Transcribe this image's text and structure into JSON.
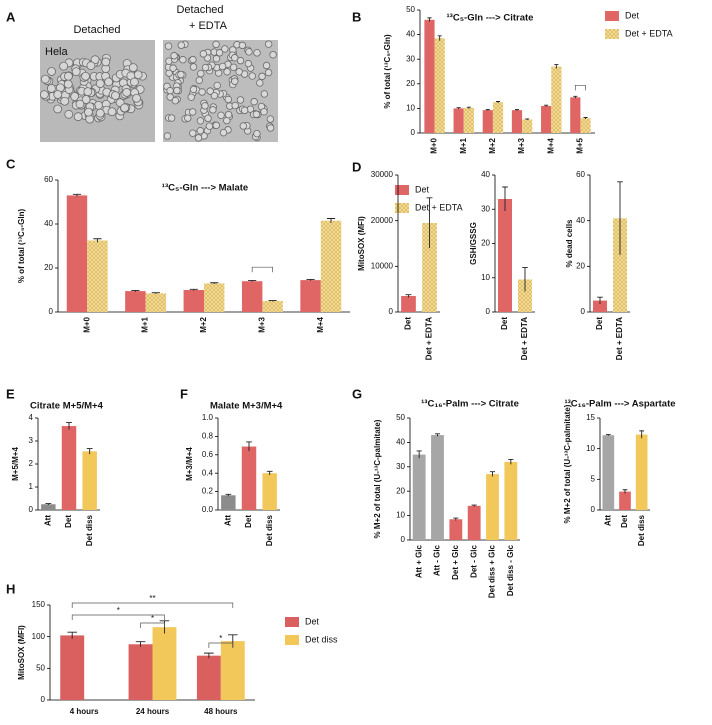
{
  "panel_a": {
    "label": "A",
    "cell_line": "Hela",
    "images": [
      {
        "title": [
          "Detached"
        ]
      },
      {
        "title": [
          "Detached",
          "+ EDTA"
        ]
      }
    ]
  },
  "chart_data": [
    {
      "type": "bar",
      "panel": "B",
      "title": "¹³C₅-Gln ---> Citrate",
      "ylabel": "% of total (¹³C₅-Gln)",
      "categories": [
        "M+0",
        "M+1",
        "M+2",
        "M+3",
        "M+4",
        "M+5"
      ],
      "series": [
        {
          "name": "Det",
          "color": "#e06666",
          "values": [
            46,
            10,
            9.3,
            9.3,
            11,
            14.5
          ],
          "errors": [
            0.8,
            0.3,
            0.2,
            0.2,
            0.3,
            0.4
          ]
        },
        {
          "name": "Det + EDTA",
          "color": "#e3bf5f",
          "hatch": true,
          "values": [
            38.5,
            10.2,
            12.5,
            5.5,
            27,
            6
          ],
          "errors": [
            1,
            0.3,
            0.3,
            0.2,
            0.8,
            0.3
          ]
        }
      ],
      "ylim": [
        0,
        50
      ],
      "yticks": [
        0,
        10,
        20,
        30,
        40,
        50
      ],
      "legend": "right"
    },
    {
      "type": "bar",
      "panel": "C",
      "title": "¹³C₅-Gln ---> Malate",
      "ylabel": "% of total (¹³C₅-Gln)",
      "categories": [
        "M+0",
        "M+1",
        "M+2",
        "M+3",
        "M+4"
      ],
      "series": [
        {
          "name": "Det",
          "color": "#e06666",
          "values": [
            53,
            9.5,
            10,
            14,
            14.5
          ],
          "errors": [
            0.5,
            0.3,
            0.3,
            0.3,
            0.3
          ]
        },
        {
          "name": "Det + EDTA",
          "color": "#e3bf5f",
          "hatch": true,
          "values": [
            32.5,
            8.5,
            13,
            5,
            41.5
          ],
          "errors": [
            0.8,
            0.3,
            0.3,
            0.2,
            1
          ]
        }
      ],
      "ylim": [
        0,
        60
      ],
      "yticks": [
        0,
        20,
        40,
        60
      ],
      "legend": "right"
    },
    {
      "type": "bar",
      "panel": "D",
      "ylabel": "MitoSOX (MFI)",
      "categories": [
        "Det",
        "Det + EDTA"
      ],
      "values": [
        3500,
        19500
      ],
      "errors": [
        300,
        5500
      ],
      "colors": [
        "#e06666",
        "#e3bf5f"
      ],
      "hatch": [
        false,
        true
      ],
      "ylim": [
        0,
        30000
      ],
      "yticks": [
        0,
        10000,
        20000,
        30000
      ]
    },
    {
      "type": "bar",
      "ylabel": "GSH/GSSG",
      "categories": [
        "Det",
        "Det + EDTA"
      ],
      "values": [
        33,
        9.5
      ],
      "errors": [
        3.5,
        3.5
      ],
      "colors": [
        "#e06666",
        "#e3bf5f"
      ],
      "hatch": [
        false,
        true
      ],
      "ylim": [
        0,
        40
      ],
      "yticks": [
        0,
        10,
        20,
        30,
        40
      ]
    },
    {
      "type": "bar",
      "ylabel": "% dead cells",
      "categories": [
        "Det",
        "Det + EDTA"
      ],
      "values": [
        5,
        41
      ],
      "errors": [
        1.5,
        16
      ],
      "colors": [
        "#e06666",
        "#e3bf5f"
      ],
      "hatch": [
        false,
        true
      ],
      "ylim": [
        0,
        60
      ],
      "yticks": [
        0,
        20,
        40,
        60
      ]
    },
    {
      "type": "bar",
      "panel": "E",
      "title": "Citrate M+5/M+4",
      "ylabel": "M+5/M+4",
      "categories": [
        "Att",
        "Det",
        "Det diss"
      ],
      "values": [
        0.25,
        3.65,
        2.55
      ],
      "errors": [
        0.03,
        0.15,
        0.12
      ],
      "colors": [
        "#8c8c8c",
        "#e06666",
        "#f2c85b"
      ],
      "ylim": [
        0,
        4
      ],
      "yticks": [
        0,
        1,
        2,
        3,
        4
      ]
    },
    {
      "type": "bar",
      "panel": "F",
      "title": "Malate M+3/M+4",
      "ylabel": "M+3/M+4",
      "categories": [
        "Att",
        "Det",
        "Det diss"
      ],
      "values": [
        0.16,
        0.69,
        0.4
      ],
      "errors": [
        0.01,
        0.05,
        0.02
      ],
      "colors": [
        "#8c8c8c",
        "#e06666",
        "#f2c85b"
      ],
      "ylim": [
        0,
        1
      ],
      "yticks": [
        {
          "value": 0,
          "label": "0.0"
        },
        0.2,
        0.4,
        0.6,
        0.8,
        {
          "value": 1,
          "label": "1.0"
        }
      ]
    },
    {
      "type": "bar",
      "panel": "G",
      "title": "¹³C₁₆-Palm ---> Citrate",
      "ylabel": "% M+2 of total (U-¹³C-palmitate)",
      "categories": [
        "Att + Glc",
        "Att - Glc",
        "Det + Glc",
        "Det - Glc",
        "Det diss + Glc",
        "Det diss - Glc"
      ],
      "values": [
        35,
        43,
        8.5,
        14,
        27,
        32
      ],
      "errors": [
        1.5,
        0.5,
        0.5,
        0.3,
        1,
        1
      ],
      "colors": [
        "#a6a6a6",
        "#a6a6a6",
        "#e06666",
        "#e06666",
        "#f2c85b",
        "#f2c85b"
      ],
      "ylim": [
        0,
        50
      ],
      "yticks": [
        0,
        10,
        20,
        30,
        40,
        50
      ]
    },
    {
      "type": "bar",
      "title": "¹³C₁₆-Palm ---> Aspartate",
      "ylabel": "% M+2 of total (U-¹³C-palmitate)",
      "categories": [
        "Att",
        "Det",
        "Det diss"
      ],
      "values": [
        12.2,
        3,
        12.3
      ],
      "errors": [
        0.1,
        0.3,
        0.6
      ],
      "colors": [
        "#a6a6a6",
        "#e06666",
        "#f2c85b"
      ],
      "ylim": [
        0,
        15
      ],
      "yticks": [
        0,
        5,
        10,
        15
      ]
    },
    {
      "type": "bar",
      "panel": "H",
      "ylabel": "MitoSOX (MFI)",
      "categories": [
        "4 hours",
        "24 hours",
        "48 hours"
      ],
      "series": [
        {
          "name": "Det",
          "color": "#d9605f",
          "values": [
            102,
            88,
            70
          ],
          "errors": [
            5,
            4,
            4
          ]
        },
        {
          "name": "Det diss",
          "color": "#f2c85b",
          "values": [
            null,
            115,
            93
          ],
          "errors": [
            null,
            10,
            10
          ]
        }
      ],
      "ylim": [
        0,
        150
      ],
      "yticks": [
        0,
        50,
        100,
        150
      ],
      "legend": "right",
      "annotations": [
        "*",
        "*",
        "**",
        "*"
      ]
    }
  ]
}
